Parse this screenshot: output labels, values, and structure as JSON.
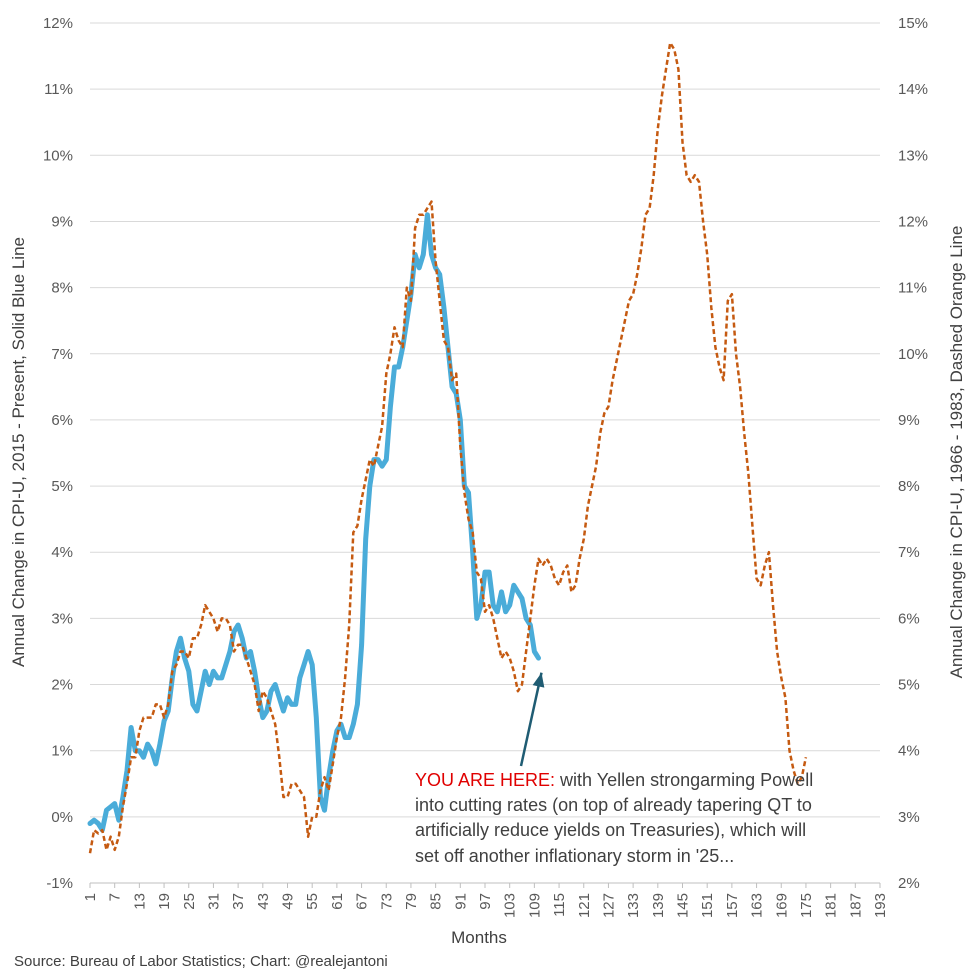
{
  "chart_data": {
    "type": "line",
    "title": "",
    "xlabel": "Months",
    "ylabel_left": "Annual Change in CPI-U, 2015 - Present, Solid Blue Line",
    "ylabel_right": "Annual Change in CPI-U, 1966 - 1983, Dashed Orange Line",
    "xlim": [
      1,
      193
    ],
    "ylim_left": [
      -1,
      12
    ],
    "ylim_right": [
      2,
      15
    ],
    "grid": true,
    "legend": "none",
    "x_ticks": [
      "1",
      "7",
      "13",
      "19",
      "25",
      "31",
      "37",
      "43",
      "49",
      "55",
      "61",
      "67",
      "73",
      "79",
      "85",
      "91",
      "97",
      "103",
      "109",
      "115",
      "121",
      "127",
      "133",
      "139",
      "145",
      "151",
      "157",
      "163",
      "169",
      "175",
      "181",
      "187",
      "193"
    ],
    "y_ticks_left": [
      "-1%",
      "0%",
      "1%",
      "2%",
      "3%",
      "4%",
      "5%",
      "6%",
      "7%",
      "8%",
      "9%",
      "10%",
      "11%",
      "12%"
    ],
    "y_ticks_right": [
      "2%",
      "3%",
      "4%",
      "5%",
      "6%",
      "7%",
      "8%",
      "9%",
      "10%",
      "11%",
      "12%",
      "13%",
      "14%",
      "15%"
    ],
    "series": [
      {
        "name": "CPI-U 2015 - Present",
        "axis": "left",
        "style": "solid",
        "color": "#4aacd9",
        "points": [
          [
            1,
            -0.1
          ],
          [
            2,
            -0.05
          ],
          [
            3,
            -0.1
          ],
          [
            4,
            -0.2
          ],
          [
            5,
            0.1
          ],
          [
            6,
            0.15
          ],
          [
            7,
            0.2
          ],
          [
            8,
            -0.05
          ],
          [
            9,
            0.3
          ],
          [
            10,
            0.7
          ],
          [
            11,
            1.35
          ],
          [
            12,
            1.0
          ],
          [
            13,
            1.0
          ],
          [
            14,
            0.9
          ],
          [
            15,
            1.1
          ],
          [
            16,
            1.0
          ],
          [
            17,
            0.8
          ],
          [
            18,
            1.1
          ],
          [
            19,
            1.45
          ],
          [
            20,
            1.6
          ],
          [
            21,
            2.1
          ],
          [
            22,
            2.5
          ],
          [
            23,
            2.7
          ],
          [
            24,
            2.4
          ],
          [
            25,
            2.2
          ],
          [
            26,
            1.7
          ],
          [
            27,
            1.6
          ],
          [
            28,
            1.9
          ],
          [
            29,
            2.2
          ],
          [
            30,
            2.0
          ],
          [
            31,
            2.2
          ],
          [
            32,
            2.1
          ],
          [
            33,
            2.1
          ],
          [
            34,
            2.3
          ],
          [
            35,
            2.5
          ],
          [
            36,
            2.8
          ],
          [
            37,
            2.9
          ],
          [
            38,
            2.7
          ],
          [
            39,
            2.4
          ],
          [
            40,
            2.5
          ],
          [
            41,
            2.2
          ],
          [
            42,
            1.8
          ],
          [
            43,
            1.5
          ],
          [
            44,
            1.6
          ],
          [
            45,
            1.9
          ],
          [
            46,
            2.0
          ],
          [
            47,
            1.8
          ],
          [
            48,
            1.6
          ],
          [
            49,
            1.8
          ],
          [
            50,
            1.7
          ],
          [
            51,
            1.7
          ],
          [
            52,
            2.1
          ],
          [
            53,
            2.3
          ],
          [
            54,
            2.5
          ],
          [
            55,
            2.3
          ],
          [
            56,
            1.5
          ],
          [
            57,
            0.3
          ],
          [
            58,
            0.1
          ],
          [
            59,
            0.6
          ],
          [
            60,
            1.0
          ],
          [
            61,
            1.3
          ],
          [
            62,
            1.4
          ],
          [
            63,
            1.2
          ],
          [
            64,
            1.2
          ],
          [
            65,
            1.4
          ],
          [
            66,
            1.7
          ],
          [
            67,
            2.6
          ],
          [
            68,
            4.2
          ],
          [
            69,
            5.0
          ],
          [
            70,
            5.4
          ],
          [
            71,
            5.4
          ],
          [
            72,
            5.3
          ],
          [
            73,
            5.4
          ],
          [
            74,
            6.2
          ],
          [
            75,
            6.8
          ],
          [
            76,
            6.8
          ],
          [
            77,
            7.1
          ],
          [
            78,
            7.5
          ],
          [
            79,
            7.9
          ],
          [
            80,
            8.5
          ],
          [
            81,
            8.3
          ],
          [
            82,
            8.5
          ],
          [
            83,
            9.1
          ],
          [
            84,
            8.5
          ],
          [
            85,
            8.3
          ],
          [
            86,
            8.2
          ],
          [
            87,
            7.7
          ],
          [
            88,
            7.1
          ],
          [
            89,
            6.5
          ],
          [
            90,
            6.4
          ],
          [
            91,
            6.0
          ],
          [
            92,
            5.0
          ],
          [
            93,
            4.9
          ],
          [
            94,
            4.0
          ],
          [
            95,
            3.0
          ],
          [
            96,
            3.2
          ],
          [
            97,
            3.7
          ],
          [
            98,
            3.7
          ],
          [
            99,
            3.2
          ],
          [
            100,
            3.1
          ],
          [
            101,
            3.4
          ],
          [
            102,
            3.1
          ],
          [
            103,
            3.2
          ],
          [
            104,
            3.5
          ],
          [
            105,
            3.4
          ],
          [
            106,
            3.3
          ],
          [
            107,
            3.0
          ],
          [
            108,
            2.9
          ],
          [
            109,
            2.5
          ],
          [
            110,
            2.4
          ]
        ]
      },
      {
        "name": "CPI-U 1966 - 1983",
        "axis": "right",
        "style": "dashed",
        "color": "#c55a11",
        "points": [
          [
            1,
            2.45
          ],
          [
            2,
            2.8
          ],
          [
            3,
            2.75
          ],
          [
            4,
            2.8
          ],
          [
            5,
            2.5
          ],
          [
            6,
            2.7
          ],
          [
            7,
            2.5
          ],
          [
            8,
            2.7
          ],
          [
            9,
            3.15
          ],
          [
            10,
            3.5
          ],
          [
            11,
            3.9
          ],
          [
            12,
            3.9
          ],
          [
            13,
            4.3
          ],
          [
            14,
            4.5
          ],
          [
            15,
            4.5
          ],
          [
            16,
            4.5
          ],
          [
            17,
            4.7
          ],
          [
            18,
            4.7
          ],
          [
            19,
            4.5
          ],
          [
            20,
            4.7
          ],
          [
            21,
            5.2
          ],
          [
            22,
            5.3
          ],
          [
            23,
            5.5
          ],
          [
            24,
            5.5
          ],
          [
            25,
            5.4
          ],
          [
            26,
            5.7
          ],
          [
            27,
            5.7
          ],
          [
            28,
            5.9
          ],
          [
            29,
            6.2
          ],
          [
            30,
            6.1
          ],
          [
            31,
            6.0
          ],
          [
            32,
            5.8
          ],
          [
            33,
            6.0
          ],
          [
            34,
            6.0
          ],
          [
            35,
            5.9
          ],
          [
            36,
            5.5
          ],
          [
            37,
            5.6
          ],
          [
            38,
            5.6
          ],
          [
            39,
            5.4
          ],
          [
            40,
            5.2
          ],
          [
            41,
            5.0
          ],
          [
            42,
            4.6
          ],
          [
            43,
            4.9
          ],
          [
            44,
            4.8
          ],
          [
            45,
            4.6
          ],
          [
            46,
            4.4
          ],
          [
            47,
            3.9
          ],
          [
            48,
            3.3
          ],
          [
            49,
            3.3
          ],
          [
            50,
            3.5
          ],
          [
            51,
            3.5
          ],
          [
            52,
            3.4
          ],
          [
            53,
            3.3
          ],
          [
            54,
            2.7
          ],
          [
            55,
            3.0
          ],
          [
            56,
            3.0
          ],
          [
            57,
            3.4
          ],
          [
            58,
            3.6
          ],
          [
            59,
            3.4
          ],
          [
            60,
            3.8
          ],
          [
            61,
            4.2
          ],
          [
            62,
            4.5
          ],
          [
            63,
            5.1
          ],
          [
            64,
            5.9
          ],
          [
            65,
            7.3
          ],
          [
            66,
            7.4
          ],
          [
            67,
            7.8
          ],
          [
            68,
            8.1
          ],
          [
            69,
            8.4
          ],
          [
            70,
            8.3
          ],
          [
            71,
            8.6
          ],
          [
            72,
            8.9
          ],
          [
            73,
            9.7
          ],
          [
            74,
            10.0
          ],
          [
            75,
            10.4
          ],
          [
            76,
            10.2
          ],
          [
            77,
            10.1
          ],
          [
            78,
            11.0
          ],
          [
            79,
            10.8
          ],
          [
            80,
            11.9
          ],
          [
            81,
            12.1
          ],
          [
            82,
            12.1
          ],
          [
            83,
            12.2
          ],
          [
            84,
            12.3
          ],
          [
            85,
            11.4
          ],
          [
            86,
            10.8
          ],
          [
            87,
            10.2
          ],
          [
            88,
            10.1
          ],
          [
            89,
            9.6
          ],
          [
            90,
            9.7
          ],
          [
            91,
            8.6
          ],
          [
            92,
            7.9
          ],
          [
            93,
            7.5
          ],
          [
            94,
            7.3
          ],
          [
            95,
            6.7
          ],
          [
            96,
            6.6
          ],
          [
            97,
            6.1
          ],
          [
            98,
            6.2
          ],
          [
            99,
            6.0
          ],
          [
            100,
            5.7
          ],
          [
            101,
            5.4
          ],
          [
            102,
            5.5
          ],
          [
            103,
            5.4
          ],
          [
            104,
            5.2
          ],
          [
            105,
            4.9
          ],
          [
            106,
            5.0
          ],
          [
            107,
            5.5
          ],
          [
            108,
            6.0
          ],
          [
            109,
            6.5
          ],
          [
            110,
            6.9
          ],
          [
            111,
            6.8
          ],
          [
            112,
            6.9
          ],
          [
            113,
            6.8
          ],
          [
            114,
            6.6
          ],
          [
            115,
            6.5
          ],
          [
            116,
            6.7
          ],
          [
            117,
            6.8
          ],
          [
            118,
            6.4
          ],
          [
            119,
            6.5
          ],
          [
            120,
            6.9
          ],
          [
            121,
            7.2
          ],
          [
            122,
            7.7
          ],
          [
            123,
            8.0
          ],
          [
            124,
            8.3
          ],
          [
            125,
            8.8
          ],
          [
            126,
            9.1
          ],
          [
            127,
            9.2
          ],
          [
            128,
            9.6
          ],
          [
            129,
            9.9
          ],
          [
            130,
            10.2
          ],
          [
            131,
            10.5
          ],
          [
            132,
            10.8
          ],
          [
            133,
            10.9
          ],
          [
            134,
            11.2
          ],
          [
            135,
            11.6
          ],
          [
            136,
            12.1
          ],
          [
            137,
            12.2
          ],
          [
            138,
            12.7
          ],
          [
            139,
            13.4
          ],
          [
            140,
            13.9
          ],
          [
            141,
            14.3
          ],
          [
            142,
            14.7
          ],
          [
            143,
            14.6
          ],
          [
            144,
            14.3
          ],
          [
            145,
            13.2
          ],
          [
            146,
            12.7
          ],
          [
            147,
            12.6
          ],
          [
            148,
            12.7
          ],
          [
            149,
            12.6
          ],
          [
            150,
            12.0
          ],
          [
            151,
            11.5
          ],
          [
            152,
            10.7
          ],
          [
            153,
            10.1
          ],
          [
            154,
            9.8
          ],
          [
            155,
            9.6
          ],
          [
            156,
            10.8
          ],
          [
            157,
            10.9
          ],
          [
            158,
            10.0
          ],
          [
            159,
            9.5
          ],
          [
            160,
            8.8
          ],
          [
            161,
            8.2
          ],
          [
            162,
            7.4
          ],
          [
            163,
            6.6
          ],
          [
            164,
            6.5
          ],
          [
            165,
            6.8
          ],
          [
            166,
            7.0
          ],
          [
            167,
            6.2
          ],
          [
            168,
            5.5
          ],
          [
            169,
            5.1
          ],
          [
            170,
            4.8
          ],
          [
            171,
            4.0
          ],
          [
            172,
            3.7
          ],
          [
            173,
            3.5
          ],
          [
            174,
            3.6
          ],
          [
            175,
            3.9
          ]
        ]
      }
    ],
    "annotation": {
      "highlight": "YOU ARE HERE:",
      "text_lines": [
        " with Yellen strongarming Powell",
        "into cutting rates (on top of already tapering QT to",
        "artificially reduce yields on Treasuries), which will",
        "set off another inflationary storm in '25..."
      ],
      "arrow_target_month": 110,
      "arrow_target_value_left": 2.3
    },
    "source_note": "Source: Bureau of Labor Statistics; Chart: @realejantoni"
  },
  "colors": {
    "grid": "#d9d9d9",
    "axis": "#bfbfbf",
    "arrow": "#1f5c73",
    "highlight": "#e00000"
  }
}
